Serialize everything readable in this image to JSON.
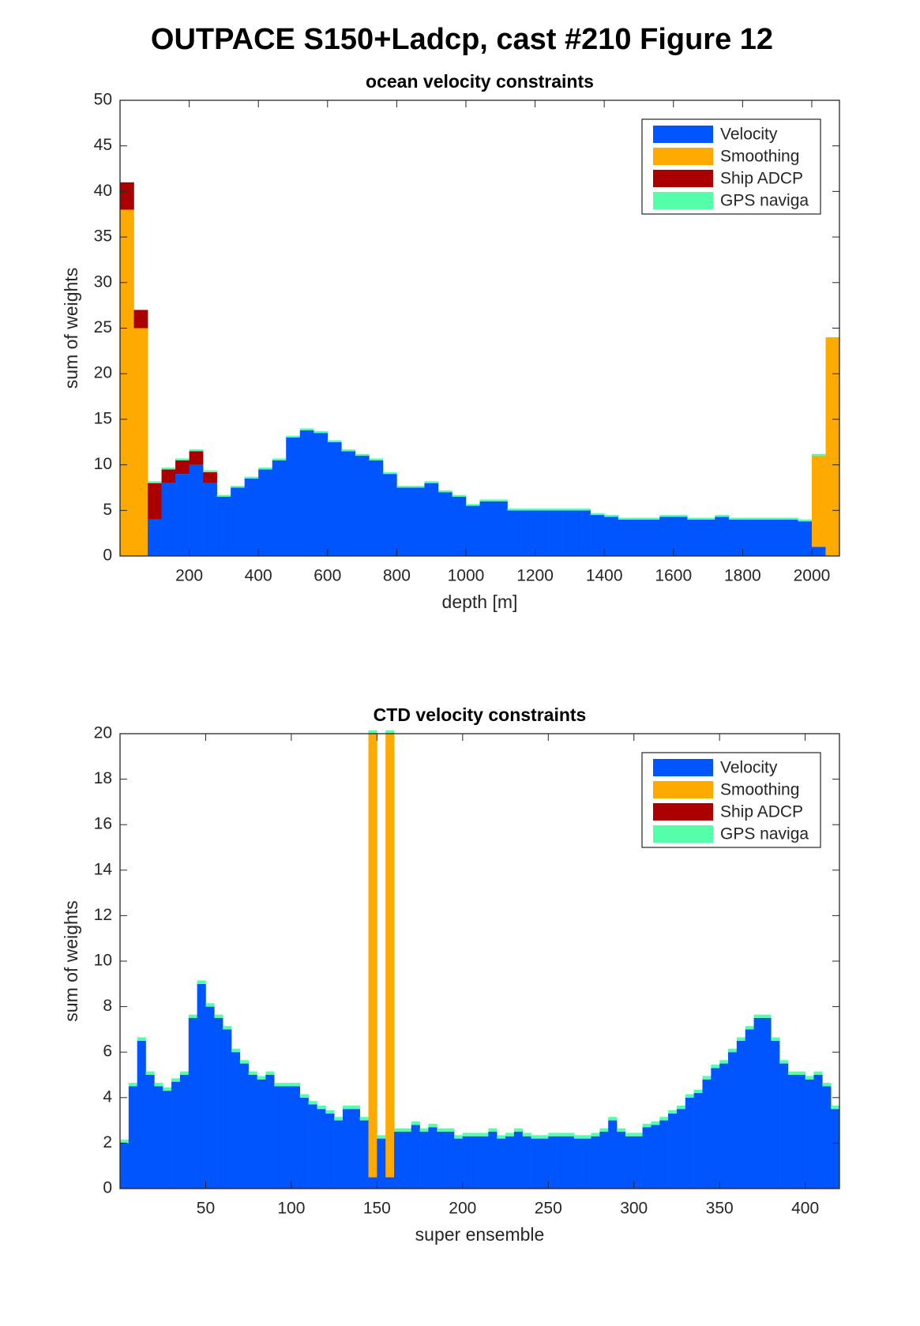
{
  "title": "OUTPACE S150+Ladcp, cast #210  Figure 12",
  "chart_data": [
    {
      "type": "bar",
      "stacked": true,
      "title": "ocean velocity constraints",
      "xlabel": "depth [m]",
      "ylabel": "sum of weights",
      "x": [
        20,
        60,
        100,
        140,
        180,
        220,
        260,
        300,
        340,
        380,
        420,
        460,
        500,
        540,
        580,
        620,
        660,
        700,
        740,
        780,
        820,
        860,
        900,
        940,
        980,
        1020,
        1060,
        1100,
        1140,
        1180,
        1220,
        1260,
        1300,
        1340,
        1380,
        1420,
        1460,
        1500,
        1540,
        1580,
        1620,
        1660,
        1700,
        1740,
        1780,
        1820,
        1860,
        1900,
        1940,
        1980,
        2020,
        2060
      ],
      "series": [
        {
          "name": "Velocity",
          "color": "#0055ff",
          "values": [
            0,
            0,
            4,
            8,
            9,
            10,
            8,
            6.5,
            7.5,
            8.5,
            9.5,
            10.5,
            13,
            13.8,
            13.5,
            12.5,
            11.5,
            11,
            10.5,
            9,
            7.5,
            7.5,
            8,
            7,
            6.5,
            5.5,
            6,
            6,
            5,
            5,
            5,
            5,
            5,
            5,
            4.5,
            4.3,
            4,
            4,
            4,
            4.3,
            4.3,
            4,
            4,
            4.3,
            4,
            4,
            4,
            4,
            4,
            3.8,
            1,
            0
          ]
        },
        {
          "name": "Smoothing",
          "color": "#ffaa00",
          "values": [
            38,
            25,
            0,
            0,
            0,
            0,
            0,
            0,
            0,
            0,
            0,
            0,
            0,
            0,
            0,
            0,
            0,
            0,
            0,
            0,
            0,
            0,
            0,
            0,
            0,
            0,
            0,
            0,
            0,
            0,
            0,
            0,
            0,
            0,
            0,
            0,
            0,
            0,
            0,
            0,
            0,
            0,
            0,
            0,
            0,
            0,
            0,
            0,
            0,
            0,
            10,
            24
          ]
        },
        {
          "name": "Ship ADCP",
          "color": "#aa0000",
          "values": [
            3,
            2,
            4,
            1.5,
            1.5,
            1.5,
            1.2,
            0,
            0,
            0,
            0,
            0,
            0,
            0,
            0,
            0,
            0,
            0,
            0,
            0,
            0,
            0,
            0,
            0,
            0,
            0,
            0,
            0,
            0,
            0,
            0,
            0,
            0,
            0,
            0,
            0,
            0,
            0,
            0,
            0,
            0,
            0,
            0,
            0,
            0,
            0,
            0,
            0,
            0,
            0,
            0,
            0
          ]
        },
        {
          "name": "GPS naviga",
          "color": "#55ffaa",
          "values": [
            0,
            0,
            0.2,
            0.2,
            0.2,
            0.2,
            0.2,
            0.2,
            0.2,
            0.2,
            0.2,
            0.2,
            0.2,
            0.2,
            0.2,
            0.2,
            0.2,
            0.2,
            0.2,
            0.2,
            0.2,
            0.2,
            0.2,
            0.2,
            0.2,
            0.2,
            0.2,
            0.2,
            0.2,
            0.2,
            0.2,
            0.2,
            0.2,
            0.2,
            0.2,
            0.2,
            0.2,
            0.2,
            0.2,
            0.2,
            0.2,
            0.2,
            0.2,
            0.2,
            0.2,
            0.2,
            0.2,
            0.2,
            0.2,
            0.2,
            0.2,
            0
          ]
        }
      ],
      "xlim": [
        0,
        2080
      ],
      "xticks": [
        200,
        400,
        600,
        800,
        1000,
        1200,
        1400,
        1600,
        1800,
        2000
      ],
      "ylim": [
        0,
        50
      ],
      "yticks": [
        0,
        5,
        10,
        15,
        20,
        25,
        30,
        35,
        40,
        45,
        50
      ],
      "legend": "upper right",
      "grid": false
    },
    {
      "type": "bar",
      "stacked": true,
      "title": "CTD velocity constraints",
      "xlabel": "super ensemble",
      "ylabel": "sum of weights",
      "x": [
        2.5,
        7.5,
        12.5,
        17.5,
        22.5,
        27.5,
        32.5,
        37.5,
        42.5,
        47.5,
        52.5,
        57.5,
        62.5,
        67.5,
        72.5,
        77.5,
        82.5,
        87.5,
        92.5,
        97.5,
        102.5,
        107.5,
        112.5,
        117.5,
        122.5,
        127.5,
        132.5,
        137.5,
        142.5,
        147.5,
        152.5,
        157.5,
        162.5,
        167.5,
        172.5,
        177.5,
        182.5,
        187.5,
        192.5,
        197.5,
        202.5,
        207.5,
        212.5,
        217.5,
        222.5,
        227.5,
        232.5,
        237.5,
        242.5,
        247.5,
        252.5,
        257.5,
        262.5,
        267.5,
        272.5,
        277.5,
        282.5,
        287.5,
        292.5,
        297.5,
        302.5,
        307.5,
        312.5,
        317.5,
        322.5,
        327.5,
        332.5,
        337.5,
        342.5,
        347.5,
        352.5,
        357.5,
        362.5,
        367.5,
        372.5,
        377.5,
        382.5,
        387.5,
        392.5,
        397.5,
        402.5,
        407.5,
        412.5,
        417.5
      ],
      "series": [
        {
          "name": "Velocity",
          "color": "#0055ff",
          "values": [
            2,
            4.5,
            6.5,
            5,
            4.5,
            4.3,
            4.7,
            5,
            7.5,
            9,
            8,
            7.5,
            7,
            6,
            5.5,
            5,
            4.8,
            5,
            4.5,
            4.5,
            4.5,
            4,
            3.7,
            3.5,
            3.3,
            3,
            3.5,
            3.5,
            3,
            0.5,
            2.2,
            0.5,
            2.5,
            2.5,
            2.8,
            2.5,
            2.7,
            2.5,
            2.5,
            2.2,
            2.3,
            2.3,
            2.3,
            2.5,
            2.2,
            2.3,
            2.5,
            2.3,
            2.2,
            2.2,
            2.3,
            2.3,
            2.3,
            2.2,
            2.2,
            2.3,
            2.5,
            3,
            2.5,
            2.3,
            2.3,
            2.7,
            2.8,
            3,
            3.3,
            3.5,
            4,
            4.2,
            4.8,
            5.3,
            5.5,
            6,
            6.5,
            7,
            7.5,
            7.5,
            6.5,
            5.5,
            5,
            5,
            4.8,
            5,
            4.5,
            3.5
          ]
        },
        {
          "name": "Smoothing",
          "color": "#ffaa00",
          "values": [
            0,
            0,
            0,
            0,
            0,
            0,
            0,
            0,
            0,
            0,
            0,
            0,
            0,
            0,
            0,
            0,
            0,
            0,
            0,
            0,
            0,
            0,
            0,
            0,
            0,
            0,
            0,
            0,
            0,
            19.5,
            0,
            19.5,
            0,
            0,
            0,
            0,
            0,
            0,
            0,
            0,
            0,
            0,
            0,
            0,
            0,
            0,
            0,
            0,
            0,
            0,
            0,
            0,
            0,
            0,
            0,
            0,
            0,
            0,
            0,
            0,
            0,
            0,
            0,
            0,
            0,
            0,
            0,
            0,
            0,
            0,
            0,
            0,
            0,
            0,
            0,
            0,
            0,
            0,
            0,
            0,
            0,
            0,
            0,
            0
          ]
        },
        {
          "name": "Ship ADCP",
          "color": "#aa0000",
          "values": [
            0,
            0,
            0,
            0,
            0,
            0,
            0,
            0,
            0,
            0,
            0,
            0,
            0,
            0,
            0,
            0,
            0,
            0,
            0,
            0,
            0,
            0,
            0,
            0,
            0,
            0,
            0,
            0,
            0,
            0,
            0,
            0,
            0,
            0,
            0,
            0,
            0,
            0,
            0,
            0,
            0,
            0,
            0,
            0,
            0,
            0,
            0,
            0,
            0,
            0,
            0,
            0,
            0,
            0,
            0,
            0,
            0,
            0,
            0,
            0,
            0,
            0,
            0,
            0,
            0,
            0,
            0,
            0,
            0,
            0,
            0,
            0,
            0,
            0,
            0,
            0,
            0,
            0,
            0,
            0,
            0,
            0,
            0,
            0
          ]
        },
        {
          "name": "GPS naviga",
          "color": "#55ffaa",
          "values": [
            0.15,
            0.15,
            0.15,
            0.15,
            0.15,
            0.15,
            0.15,
            0.15,
            0.15,
            0.15,
            0.15,
            0.15,
            0.15,
            0.15,
            0.15,
            0.15,
            0.15,
            0.15,
            0.15,
            0.15,
            0.15,
            0.15,
            0.15,
            0.15,
            0.15,
            0.15,
            0.15,
            0.15,
            0.15,
            0.15,
            0.15,
            0.15,
            0.15,
            0.15,
            0.15,
            0.15,
            0.15,
            0.15,
            0.15,
            0.15,
            0.15,
            0.15,
            0.15,
            0.15,
            0.15,
            0.15,
            0.15,
            0.15,
            0.15,
            0.15,
            0.15,
            0.15,
            0.15,
            0.15,
            0.15,
            0.15,
            0.15,
            0.15,
            0.15,
            0.15,
            0.15,
            0.15,
            0.15,
            0.15,
            0.15,
            0.15,
            0.15,
            0.15,
            0.15,
            0.15,
            0.15,
            0.15,
            0.15,
            0.15,
            0.15,
            0.15,
            0.15,
            0.15,
            0.15,
            0.15,
            0.15,
            0.15,
            0.15,
            0.15
          ]
        }
      ],
      "xlim": [
        0,
        420
      ],
      "xticks": [
        50,
        100,
        150,
        200,
        250,
        300,
        350,
        400
      ],
      "ylim": [
        0,
        20
      ],
      "yticks": [
        0,
        2,
        4,
        6,
        8,
        10,
        12,
        14,
        16,
        18,
        20
      ],
      "legend": "upper right",
      "grid": false
    }
  ]
}
